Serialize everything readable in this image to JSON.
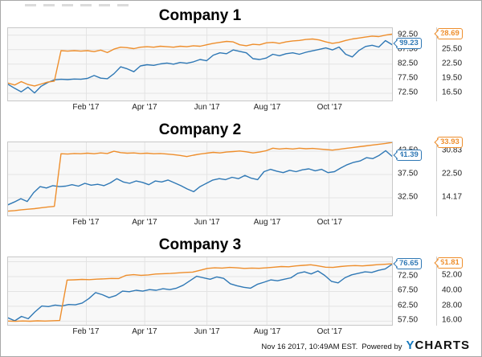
{
  "colors": {
    "blue": "#2f78b5",
    "orange": "#ee8e2c",
    "grid": "#e3e3e3",
    "plot_bg": "#f8f8f8",
    "plot_border": "#c8c8c8",
    "logo_blue": "#1478bd",
    "text": "#222222"
  },
  "x_axis": {
    "labels": [
      "Feb '17",
      "Apr '17",
      "Jun '17",
      "Aug '17",
      "Oct '17"
    ],
    "fractions": [
      0.204,
      0.356,
      0.518,
      0.674,
      0.836
    ]
  },
  "chart_data": [
    {
      "type": "line",
      "title": "Company 1",
      "xlabel": "",
      "x_tick_labels": [
        "Feb '17",
        "Apr '17",
        "Jun '17",
        "Aug '17",
        "Oct '17"
      ],
      "grid": true,
      "legend": "none",
      "axis1": {
        "side": "right-inner",
        "min": 70.0,
        "max": 94.9,
        "ticks": [
          {
            "v": 72.5,
            "label": "72.50"
          },
          {
            "v": 77.5,
            "label": "77.50"
          },
          {
            "v": 82.5,
            "label": "82.50"
          },
          {
            "v": 87.5,
            "label": "87.50"
          },
          {
            "v": 92.5,
            "label": "92.50"
          }
        ]
      },
      "axis2": {
        "side": "right-outer",
        "min": 15.0,
        "max": 29.94,
        "ticks": [
          {
            "v": 16.5,
            "label": "16.50"
          },
          {
            "v": 19.5,
            "label": "19.50"
          },
          {
            "v": 22.5,
            "label": "22.50"
          },
          {
            "v": 25.5,
            "label": "25.50"
          },
          {
            "v": 28.5,
            "label": "28.50",
            "hidden": true
          }
        ]
      },
      "series": [
        {
          "name": "blue-series",
          "color": "blue",
          "axis": 1,
          "last_label": "89.23",
          "values": [
            75.6,
            74.2,
            73.0,
            74.6,
            72.6,
            74.9,
            76.2,
            77.1,
            77.3,
            77.2,
            77.4,
            77.3,
            77.6,
            78.6,
            77.7,
            77.5,
            79.2,
            81.6,
            80.9,
            79.9,
            81.9,
            82.3,
            82.1,
            82.6,
            82.9,
            82.5,
            83.1,
            82.8,
            83.3,
            84.1,
            83.7,
            85.6,
            86.4,
            86.1,
            87.4,
            86.9,
            86.4,
            84.4,
            84.1,
            84.6,
            85.9,
            85.4,
            86.1,
            86.4,
            85.9,
            86.6,
            87.1,
            87.6,
            88.1,
            87.4,
            88.4,
            85.9,
            85.0,
            87.2,
            88.6,
            89.0,
            88.4,
            90.6,
            89.23
          ]
        },
        {
          "name": "orange-series",
          "color": "orange",
          "axis": 2,
          "last_label": "28.69",
          "values": [
            18.6,
            18.2,
            18.9,
            18.3,
            18.0,
            18.4,
            18.8,
            19.0,
            25.3,
            25.2,
            25.3,
            25.2,
            25.3,
            25.1,
            25.4,
            24.9,
            25.6,
            26.0,
            25.9,
            25.7,
            26.0,
            26.1,
            26.0,
            26.2,
            26.1,
            26.0,
            26.2,
            26.1,
            26.3,
            26.2,
            26.5,
            26.8,
            27.0,
            27.2,
            27.1,
            26.5,
            26.3,
            26.6,
            26.5,
            26.9,
            27.0,
            26.8,
            27.1,
            27.3,
            27.4,
            27.6,
            27.7,
            27.5,
            27.1,
            26.8,
            27.0,
            27.4,
            27.7,
            27.9,
            28.1,
            28.3,
            28.2,
            28.5,
            28.69
          ]
        }
      ]
    },
    {
      "type": "line",
      "title": "Company 2",
      "xlabel": "",
      "x_tick_labels": [
        "Feb '17",
        "Apr '17",
        "Jun '17",
        "Aug '17",
        "Oct '17"
      ],
      "grid": true,
      "legend": "none",
      "axis1": {
        "side": "right-inner",
        "min": 28.7,
        "max": 44.4,
        "ticks": [
          {
            "v": 32.5,
            "label": "32.50"
          },
          {
            "v": 37.5,
            "label": "37.50"
          },
          {
            "v": 42.5,
            "label": "42.50"
          }
        ]
      },
      "axis2": {
        "side": "right-outer",
        "min": 7.85,
        "max": 33.99,
        "ticks": [
          {
            "v": 14.17,
            "label": "14.17"
          },
          {
            "v": 22.5,
            "label": "22.50"
          },
          {
            "v": 30.83,
            "label": "30.83"
          }
        ]
      },
      "series": [
        {
          "name": "blue-series",
          "color": "blue",
          "axis": 1,
          "last_label": "41.39",
          "values": [
            31.0,
            31.6,
            32.3,
            31.7,
            33.6,
            34.9,
            34.6,
            35.1,
            34.9,
            35.0,
            35.3,
            35.0,
            35.6,
            35.2,
            35.4,
            35.1,
            35.7,
            36.6,
            35.9,
            35.6,
            36.1,
            35.8,
            35.3,
            36.1,
            35.9,
            36.3,
            35.7,
            35.1,
            34.4,
            33.8,
            34.9,
            35.6,
            36.3,
            36.6,
            36.4,
            36.9,
            36.6,
            37.3,
            36.7,
            36.4,
            38.1,
            38.6,
            38.2,
            37.9,
            38.4,
            38.1,
            38.5,
            38.7,
            38.3,
            38.6,
            37.9,
            38.1,
            38.9,
            39.6,
            40.1,
            40.4,
            41.1,
            40.9,
            41.6,
            42.6,
            41.39
          ]
        },
        {
          "name": "orange-series",
          "color": "orange",
          "axis": 2,
          "last_label": "33.93",
          "values": [
            9.4,
            9.6,
            9.9,
            10.1,
            10.3,
            10.6,
            10.9,
            11.1,
            29.9,
            29.8,
            30.0,
            29.9,
            30.1,
            29.9,
            30.2,
            30.0,
            30.8,
            30.3,
            30.1,
            30.2,
            30.0,
            30.1,
            29.9,
            30.0,
            29.8,
            29.6,
            29.3,
            28.9,
            29.4,
            29.8,
            30.1,
            30.4,
            30.2,
            30.5,
            30.7,
            30.9,
            30.6,
            30.2,
            30.5,
            31.0,
            31.9,
            31.6,
            31.8,
            31.6,
            31.9,
            31.7,
            31.8,
            31.6,
            31.4,
            31.2,
            31.5,
            31.8,
            32.1,
            32.4,
            32.7,
            33.0,
            33.3,
            33.6,
            33.93
          ]
        }
      ]
    },
    {
      "type": "line",
      "title": "Company 3",
      "xlabel": "",
      "x_tick_labels": [
        "Feb '17",
        "Apr '17",
        "Jun '17",
        "Aug '17",
        "Oct '17"
      ],
      "grid": true,
      "legend": "none",
      "axis1": {
        "side": "right-inner",
        "min": 56.25,
        "max": 79.0,
        "ticks": [
          {
            "v": 57.5,
            "label": "57.50"
          },
          {
            "v": 62.5,
            "label": "62.50"
          },
          {
            "v": 67.5,
            "label": "67.50"
          },
          {
            "v": 72.5,
            "label": "72.50"
          },
          {
            "v": 77.5,
            "label": "77.50",
            "hidden": true
          }
        ]
      },
      "axis2": {
        "side": "right-outer",
        "min": 13.0,
        "max": 67.0,
        "ticks": [
          {
            "v": 16.0,
            "label": "16.00"
          },
          {
            "v": 28.0,
            "label": "28.00"
          },
          {
            "v": 40.0,
            "label": "40.00"
          },
          {
            "v": 52.0,
            "label": "52.00"
          },
          {
            "v": 64.0,
            "label": "64.00",
            "hidden": true
          }
        ]
      },
      "series": [
        {
          "name": "blue-series",
          "color": "blue",
          "axis": 1,
          "last_label": "76.65",
          "values": [
            58.6,
            57.6,
            59.1,
            58.3,
            60.6,
            62.6,
            62.4,
            62.9,
            62.6,
            63.1,
            63.0,
            63.6,
            65.1,
            67.1,
            66.4,
            65.4,
            66.1,
            67.6,
            67.4,
            67.9,
            67.6,
            68.1,
            67.9,
            68.4,
            68.1,
            68.6,
            69.6,
            71.1,
            72.6,
            72.1,
            71.6,
            72.4,
            71.9,
            70.1,
            69.4,
            68.9,
            68.6,
            69.9,
            70.6,
            71.4,
            71.1,
            71.6,
            72.1,
            73.6,
            74.1,
            73.4,
            74.4,
            72.9,
            70.9,
            70.4,
            72.1,
            73.1,
            73.6,
            74.1,
            73.9,
            74.6,
            75.1,
            76.65
          ]
        },
        {
          "name": "orange-series",
          "color": "orange",
          "axis": 2,
          "last_label": "61.81",
          "values": [
            16.0,
            15.8,
            16.1,
            15.9,
            16.2,
            16.0,
            16.3,
            16.5,
            48.8,
            49.0,
            49.3,
            49.1,
            49.5,
            49.8,
            50.1,
            50.0,
            52.6,
            53.1,
            52.6,
            52.9,
            53.6,
            53.9,
            54.1,
            54.5,
            54.9,
            55.2,
            56.6,
            58.1,
            58.6,
            58.4,
            58.9,
            58.6,
            58.1,
            58.4,
            58.2,
            58.6,
            59.1,
            59.6,
            59.4,
            60.1,
            60.6,
            61.0,
            60.1,
            59.1,
            58.9,
            59.6,
            60.1,
            60.4,
            60.1,
            60.6,
            61.1,
            61.4,
            61.81
          ]
        }
      ]
    }
  ],
  "footer": {
    "timestamp": "Nov 16 2017, 10:49AM EST.",
    "powered_by": "Powered by",
    "logo_y": "Y",
    "logo_rest": "CHARTS"
  }
}
